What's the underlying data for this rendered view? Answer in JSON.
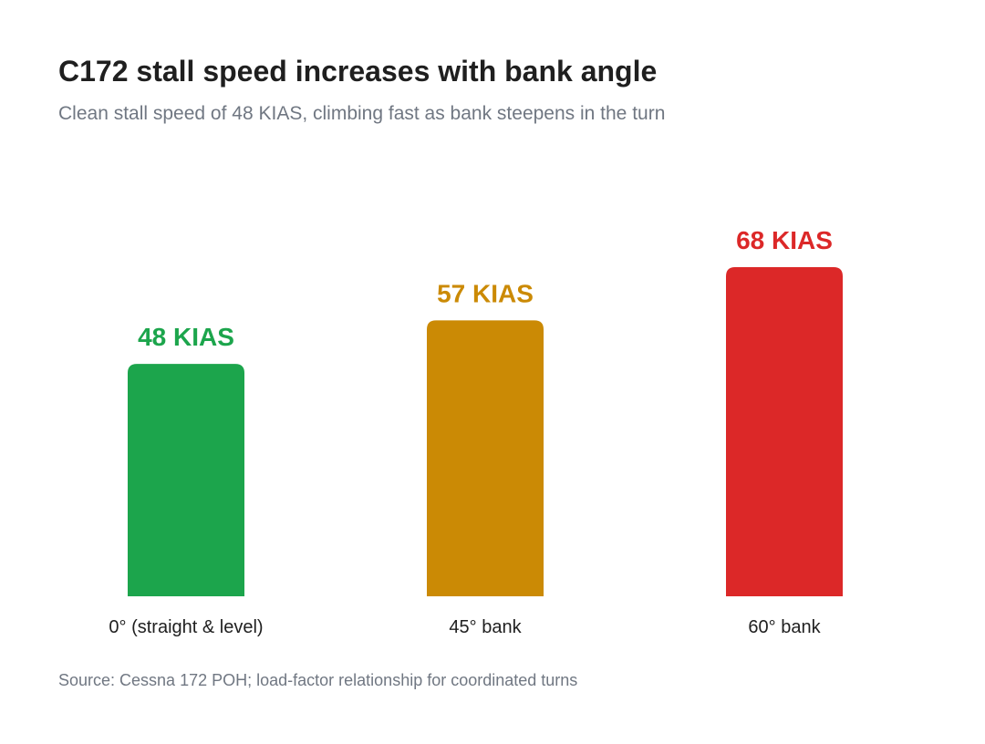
{
  "chart_data": {
    "type": "bar",
    "title": "C172 stall speed increases with bank angle",
    "subtitle": "Clean stall speed of 48 KIAS, climbing fast as bank steepens in the turn",
    "categories": [
      "0° (straight & level)",
      "45° bank",
      "60° bank"
    ],
    "values": [
      48,
      57,
      68
    ],
    "value_labels": [
      "48 KIAS",
      "57 KIAS",
      "68 KIAS"
    ],
    "colors": [
      "#1ca54c",
      "#cb8a05",
      "#dc2828"
    ],
    "xlabel": "",
    "ylabel": "",
    "ylim": [
      0,
      80
    ],
    "grid": false,
    "legend": "none",
    "source": "Source: Cessna 172 POH; load-factor relationship for coordinated turns"
  }
}
